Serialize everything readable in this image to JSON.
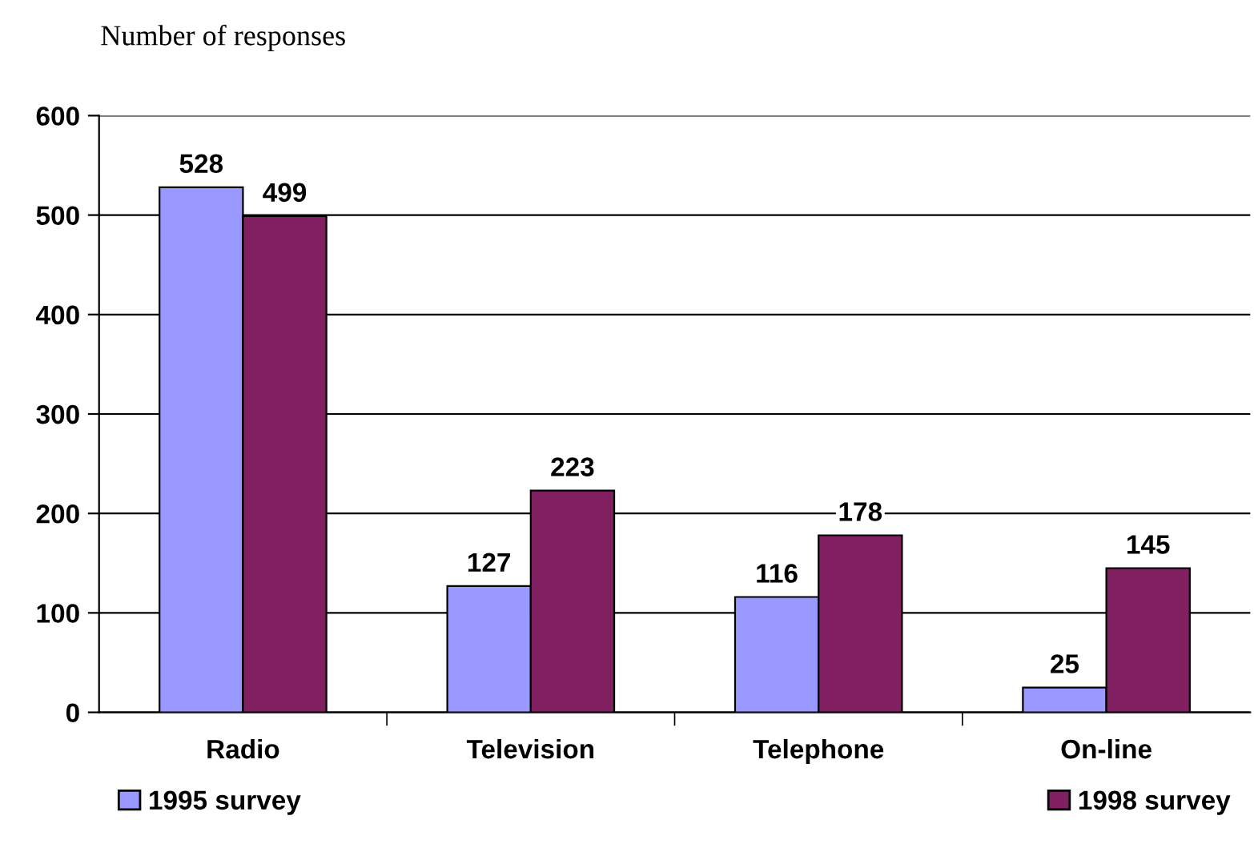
{
  "chart_data": {
    "type": "bar",
    "title": "Number of responses",
    "categories": [
      "Radio",
      "Television",
      "Telephone",
      "On-line"
    ],
    "series": [
      {
        "name": "1995 survey",
        "color": "#9999ff",
        "values": [
          528,
          127,
          116,
          25
        ]
      },
      {
        "name": "1998 survey",
        "color": "#802060",
        "values": [
          499,
          223,
          178,
          145
        ]
      }
    ],
    "ylim": [
      0,
      600
    ],
    "yticks": [
      0,
      100,
      200,
      300,
      400,
      500,
      600
    ],
    "grid": "y",
    "legend": "bottom",
    "data_labels": true
  }
}
